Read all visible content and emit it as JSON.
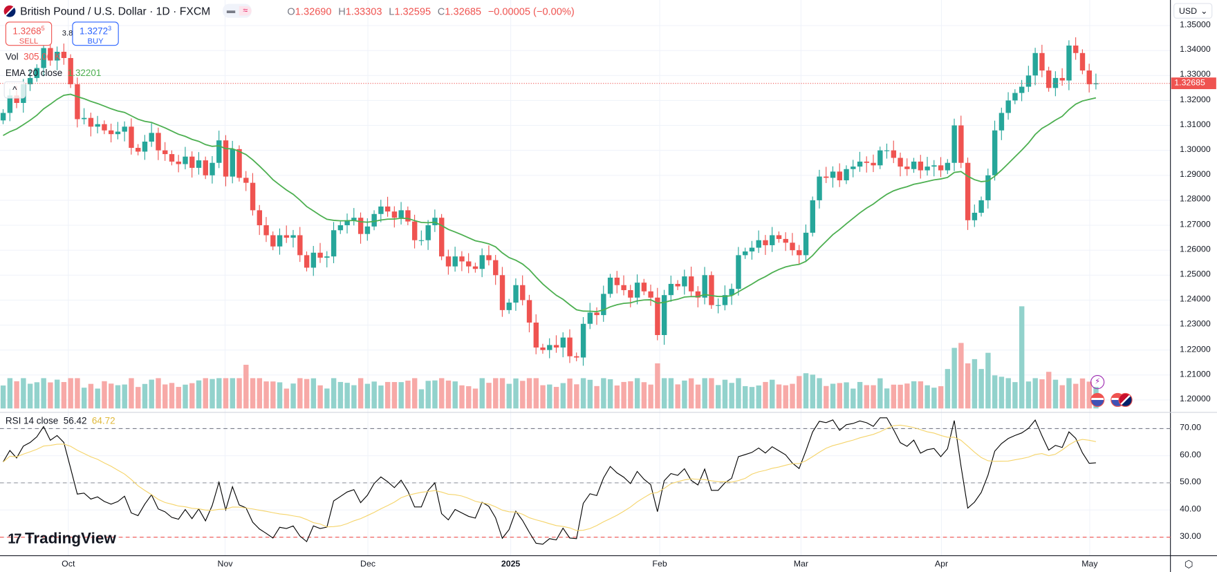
{
  "header": {
    "title": "British Pound / U.S. Dollar · 1D · FXCM",
    "pill_left": "▬",
    "pill_right": "≈",
    "ohlc": {
      "o_label": "O",
      "o": "1.32690",
      "h_label": "H",
      "h": "1.33303",
      "l_label": "L",
      "l": "1.32595",
      "c_label": "C",
      "c": "1.32685",
      "change": "−0.00005 (−0.00%)"
    }
  },
  "trade": {
    "sell_price": "1.3268",
    "sell_sup": "5",
    "sell_label": "SELL",
    "spread": "3.8",
    "buy_price": "1.3272",
    "buy_sup": "3",
    "buy_label": "BUY"
  },
  "legend": {
    "vol_label": "Vol",
    "vol_value": "305.06 K",
    "ema_label": "EMA 20 close",
    "ema_value": "1.32201",
    "rsi_label": "RSI 14 close",
    "rsi_value": "56.42",
    "rsi_ma_value": "64.72",
    "collapse": "^"
  },
  "price_axis": {
    "currency": "USD",
    "ticks": [
      "1.35000",
      "1.34000",
      "1.33000",
      "1.32000",
      "1.31000",
      "1.30000",
      "1.29000",
      "1.28000",
      "1.27000",
      "1.26000",
      "1.25000",
      "1.24000",
      "1.23000",
      "1.22000",
      "1.21000",
      "1.20000"
    ],
    "current": "1.32685"
  },
  "rsi_axis": {
    "ticks": [
      "70.00",
      "60.00",
      "50.00",
      "40.00",
      "30.00"
    ]
  },
  "time_axis": {
    "labels": [
      "Oct",
      "Nov",
      "Dec",
      "2025",
      "Feb",
      "Mar",
      "Apr",
      "May"
    ]
  },
  "logo": "TradingView",
  "colors": {
    "up": "#26a69a",
    "down": "#ef5350",
    "ema": "#4caf50",
    "rsi": "#000000",
    "rsi_ma": "#f5d46a"
  },
  "chart_data": {
    "type": "candlestick",
    "symbol": "GBPUSD",
    "interval": "1D",
    "ylim": [
      1.2,
      1.35
    ],
    "closes": [
      1.315,
      1.322,
      1.319,
      1.3265,
      1.329,
      1.333,
      1.341,
      1.336,
      1.3395,
      1.337,
      1.3265,
      1.3125,
      1.313,
      1.3095,
      1.3105,
      1.308,
      1.3065,
      1.3075,
      1.3095,
      1.301,
      1.2995,
      1.3035,
      1.307,
      1.3,
      1.2985,
      1.2955,
      1.2945,
      1.2975,
      1.293,
      1.296,
      1.29,
      1.295,
      1.304,
      1.2895,
      1.3005,
      1.289,
      1.287,
      1.276,
      1.27,
      1.266,
      1.2615,
      1.266,
      1.265,
      1.266,
      1.258,
      1.253,
      1.259,
      1.257,
      1.2575,
      1.268,
      1.27,
      1.272,
      1.273,
      1.2665,
      1.2695,
      1.2745,
      1.2775,
      1.2755,
      1.273,
      1.276,
      1.2715,
      1.264,
      1.264,
      1.27,
      1.273,
      1.2575,
      1.2535,
      1.2575,
      1.2555,
      1.2535,
      1.2525,
      1.258,
      1.256,
      1.25,
      1.236,
      1.239,
      1.246,
      1.24,
      1.231,
      1.221,
      1.22,
      1.222,
      1.221,
      1.225,
      1.2175,
      1.217,
      1.2305,
      1.235,
      1.234,
      1.2425,
      1.249,
      1.246,
      1.244,
      1.241,
      1.247,
      1.2435,
      1.241,
      1.226,
      1.242,
      1.2465,
      1.2455,
      1.2495,
      1.2435,
      1.241,
      1.25,
      1.238,
      1.238,
      1.242,
      1.2445,
      1.258,
      1.2595,
      1.261,
      1.264,
      1.262,
      1.266,
      1.2645,
      1.263,
      1.26,
      1.258,
      1.267,
      1.28,
      1.2895,
      1.289,
      1.2915,
      1.288,
      1.2925,
      1.2935,
      1.2955,
      1.295,
      1.294,
      1.3,
      1.3,
      1.297,
      1.2935,
      1.2925,
      1.2955,
      1.292,
      1.2935,
      1.294,
      1.292,
      1.295,
      1.31,
      1.295,
      1.272,
      1.275,
      1.28,
      1.29,
      1.308,
      1.315,
      1.32,
      1.323,
      1.3255,
      1.33,
      1.339,
      1.332,
      1.325,
      1.329,
      1.328,
      1.342,
      1.339,
      1.332,
      1.3265,
      1.32685
    ],
    "volume_unit": "K",
    "volume_overrides": {
      "36": 620,
      "97": 640,
      "118": 460,
      "119": 500,
      "120": 480,
      "140": 560,
      "141": 860,
      "142": 930,
      "143": 640,
      "144": 700,
      "145": 560,
      "146": 790,
      "147": 470,
      "148": 450,
      "151": 1450,
      "155": 520,
      "162": 305
    },
    "ema_period": 20,
    "rsi_period": 14,
    "rsi_ma_period": 14,
    "rsi_levels": [
      70,
      50,
      30
    ],
    "time_labels": [
      "Oct",
      "Nov",
      "Dec",
      "2025",
      "Feb",
      "Mar",
      "Apr",
      "May"
    ]
  }
}
